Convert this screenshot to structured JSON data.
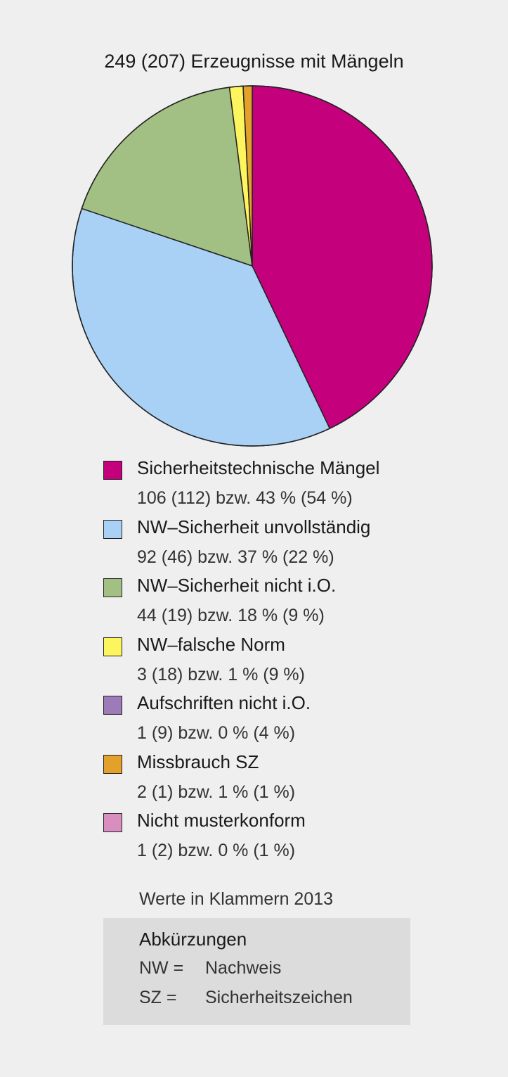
{
  "chart_data": {
    "type": "pie",
    "title": "249 (207) Erzeugnisse mit Mängeln",
    "slices": [
      {
        "label": "Sicherheitstechnische Mängel",
        "value": 106,
        "value_2013": 112,
        "percent": 43,
        "percent_2013": 54,
        "text": "106 (112) bzw. 43 % (54 %)",
        "color": "#c5007d"
      },
      {
        "label": "NW–Sicherheit unvollständig",
        "value": 92,
        "value_2013": 46,
        "percent": 37,
        "percent_2013": 22,
        "text": "92 (46) bzw. 37 % (22 %)",
        "color": "#a9d1f5"
      },
      {
        "label": "NW–Sicherheit nicht i.O.",
        "value": 44,
        "value_2013": 19,
        "percent": 18,
        "percent_2013": 9,
        "text": "44 (19) bzw. 18 % (9 %)",
        "color": "#a2bf84"
      },
      {
        "label": "NW–falsche Norm",
        "value": 3,
        "value_2013": 18,
        "percent": 1,
        "percent_2013": 9,
        "text": "3 (18) bzw. 1 % (9 %)",
        "color": "#fdf55e"
      },
      {
        "label": "Aufschriften nicht i.O.",
        "value": 1,
        "value_2013": 9,
        "percent": 0,
        "percent_2013": 4,
        "text": "1 (9) bzw. 0 % (4 %)",
        "color": "#9d7bb8"
      },
      {
        "label": "Missbrauch SZ",
        "value": 2,
        "value_2013": 1,
        "percent": 1,
        "percent_2013": 1,
        "text": "2 (1) bzw. 1 % (1 %)",
        "color": "#e3a02a"
      },
      {
        "label": "Nicht musterkonform",
        "value": 1,
        "value_2013": 2,
        "percent": 0,
        "percent_2013": 1,
        "text": "1 (2) bzw. 0 % (1 %)",
        "color": "#d88fbf"
      }
    ],
    "pie_order": [
      0,
      1,
      2,
      3,
      5
    ]
  },
  "note": "Werte in Klammern 2013",
  "abbreviations": {
    "title": "Abkürzungen",
    "rows": [
      {
        "key": "NW =",
        "value": "Nachweis"
      },
      {
        "key": "SZ =",
        "value": "Sicherheitszeichen"
      }
    ]
  }
}
